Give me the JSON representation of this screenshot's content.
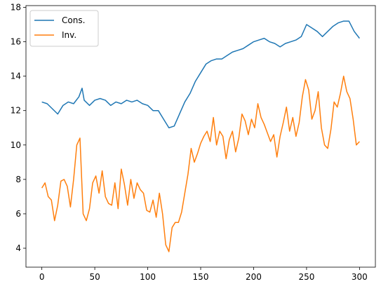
{
  "chart_data": {
    "type": "line",
    "title": "",
    "xlabel": "",
    "ylabel": "",
    "xlim": [
      -15,
      315
    ],
    "ylim": [
      2.9,
      18.1
    ],
    "x_ticks": [
      0,
      50,
      100,
      150,
      200,
      250,
      300
    ],
    "y_ticks": [
      4,
      6,
      8,
      10,
      12,
      14,
      16,
      18
    ],
    "grid": false,
    "legend": "upper left",
    "series": [
      {
        "name": "Cons.",
        "color": "#1f77b4",
        "x": [
          0,
          5,
          10,
          15,
          20,
          25,
          30,
          35,
          38,
          40,
          45,
          50,
          55,
          60,
          65,
          70,
          75,
          80,
          85,
          90,
          95,
          100,
          105,
          110,
          115,
          120,
          125,
          130,
          135,
          140,
          145,
          150,
          155,
          160,
          165,
          170,
          175,
          180,
          185,
          190,
          195,
          200,
          205,
          210,
          215,
          220,
          225,
          230,
          235,
          240,
          245,
          250,
          255,
          260,
          265,
          270,
          275,
          280,
          285,
          290,
          295,
          300
        ],
        "y": [
          12.5,
          12.4,
          12.1,
          11.8,
          12.3,
          12.5,
          12.4,
          12.8,
          13.3,
          12.6,
          12.3,
          12.6,
          12.7,
          12.6,
          12.3,
          12.5,
          12.4,
          12.6,
          12.5,
          12.6,
          12.4,
          12.3,
          12.0,
          12.0,
          11.5,
          11.0,
          11.1,
          11.8,
          12.5,
          13.0,
          13.7,
          14.2,
          14.7,
          14.9,
          15.0,
          15.0,
          15.2,
          15.4,
          15.5,
          15.6,
          15.8,
          16.0,
          16.1,
          16.2,
          16.0,
          15.9,
          15.7,
          15.9,
          16.0,
          16.1,
          16.3,
          17.0,
          16.8,
          16.6,
          16.3,
          16.6,
          16.9,
          17.1,
          17.2,
          17.2,
          16.6,
          16.2
        ]
      },
      {
        "name": "Inv.",
        "color": "#ff7f0e",
        "x": [
          0,
          3,
          6,
          9,
          12,
          15,
          18,
          21,
          24,
          27,
          30,
          33,
          36,
          39,
          42,
          45,
          48,
          51,
          54,
          57,
          60,
          63,
          66,
          69,
          72,
          75,
          78,
          81,
          84,
          87,
          90,
          93,
          96,
          99,
          102,
          105,
          108,
          111,
          114,
          117,
          120,
          123,
          126,
          129,
          132,
          135,
          138,
          141,
          144,
          147,
          150,
          153,
          156,
          159,
          162,
          165,
          168,
          171,
          174,
          177,
          180,
          183,
          186,
          189,
          192,
          195,
          198,
          201,
          204,
          207,
          210,
          213,
          216,
          219,
          222,
          225,
          228,
          231,
          234,
          237,
          240,
          243,
          246,
          249,
          252,
          255,
          258,
          261,
          264,
          267,
          270,
          273,
          276,
          279,
          282,
          285,
          288,
          291,
          294,
          297,
          300
        ],
        "y": [
          7.5,
          7.8,
          7.0,
          6.8,
          5.6,
          6.5,
          7.9,
          8.0,
          7.6,
          6.4,
          8.0,
          10.0,
          10.4,
          6.0,
          5.6,
          6.3,
          7.8,
          8.2,
          7.2,
          8.5,
          7.0,
          6.6,
          6.5,
          7.8,
          6.3,
          8.6,
          7.7,
          6.5,
          8.0,
          6.9,
          7.8,
          7.4,
          7.2,
          6.2,
          6.1,
          6.8,
          5.8,
          7.2,
          6.0,
          4.2,
          3.8,
          5.2,
          5.5,
          5.5,
          6.1,
          7.2,
          8.3,
          9.8,
          9.0,
          9.5,
          10.1,
          10.5,
          10.8,
          10.2,
          11.6,
          10.0,
          10.8,
          10.5,
          9.2,
          10.3,
          10.8,
          9.6,
          10.4,
          11.8,
          11.4,
          10.6,
          11.5,
          11.0,
          12.4,
          11.6,
          11.2,
          10.7,
          10.2,
          10.6,
          9.3,
          10.5,
          11.3,
          12.2,
          10.8,
          11.6,
          10.5,
          11.3,
          12.8,
          13.8,
          13.2,
          11.5,
          12.0,
          13.1,
          11.0,
          10.0,
          9.8,
          10.9,
          12.5,
          12.2,
          13.0,
          14.0,
          13.1,
          12.7,
          11.5,
          10.0,
          10.2
        ]
      }
    ]
  }
}
